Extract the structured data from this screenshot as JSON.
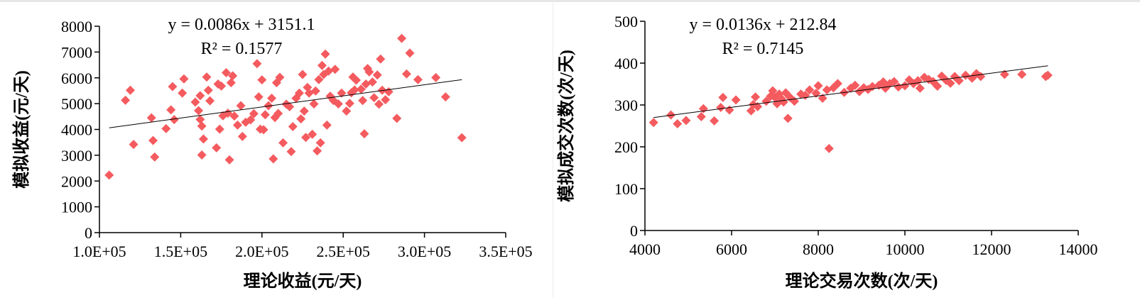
{
  "colors": {
    "marker": "#f45b5f",
    "trendline": "#000000",
    "axis": "#000000"
  },
  "chart_data": [
    {
      "type": "scatter",
      "title": "",
      "xlabel": "理论收益(元/天)",
      "ylabel": "模拟收益(元/天)",
      "xlim": [
        100000,
        350000
      ],
      "ylim": [
        0,
        8000
      ],
      "x_ticks": [
        "1.0E+05",
        "1.5E+05",
        "2.0E+05",
        "2.5E+05",
        "3.0E+05",
        "3.5E+05"
      ],
      "x_tick_values": [
        100000,
        150000,
        200000,
        250000,
        300000,
        350000
      ],
      "y_ticks": [
        "0",
        "1000",
        "2000",
        "3000",
        "4000",
        "5000",
        "6000",
        "7000",
        "8000"
      ],
      "y_tick_values": [
        0,
        1000,
        2000,
        3000,
        4000,
        5000,
        6000,
        7000,
        8000
      ],
      "grid": false,
      "legend": "none",
      "annotations": [
        "y = 0.0086x + 3151.1",
        "R² = 0.1577"
      ],
      "trendline": {
        "slope": 0.0086,
        "intercept": 3151.1,
        "x_range": [
          106000,
          323000
        ]
      },
      "series": [
        {
          "points": [
            [
              106000,
              2230
            ],
            [
              116000,
              5130
            ],
            [
              119000,
              5520
            ],
            [
              121000,
              3420
            ],
            [
              132000,
              4450
            ],
            [
              133000,
              3570
            ],
            [
              134000,
              2930
            ],
            [
              141000,
              4030
            ],
            [
              144000,
              4760
            ],
            [
              145000,
              5660
            ],
            [
              146000,
              4380
            ],
            [
              151000,
              5410
            ],
            [
              152000,
              5960
            ],
            [
              159000,
              5060
            ],
            [
              161000,
              4730
            ],
            [
              162000,
              5310
            ],
            [
              162000,
              4390
            ],
            [
              163000,
              4130
            ],
            [
              163000,
              3010
            ],
            [
              164000,
              3630
            ],
            [
              166000,
              6030
            ],
            [
              167000,
              5520
            ],
            [
              168000,
              5110
            ],
            [
              172000,
              3290
            ],
            [
              173000,
              5760
            ],
            [
              174000,
              4010
            ],
            [
              175000,
              5680
            ],
            [
              176000,
              4530
            ],
            [
              178000,
              6200
            ],
            [
              179000,
              4630
            ],
            [
              180000,
              2820
            ],
            [
              181000,
              5810
            ],
            [
              182000,
              6080
            ],
            [
              183000,
              4520
            ],
            [
              185000,
              4170
            ],
            [
              187000,
              4920
            ],
            [
              188000,
              3730
            ],
            [
              190000,
              4280
            ],
            [
              193000,
              4370
            ],
            [
              195000,
              4610
            ],
            [
              197000,
              6550
            ],
            [
              198000,
              5260
            ],
            [
              199000,
              4010
            ],
            [
              200000,
              5920
            ],
            [
              201000,
              3990
            ],
            [
              202000,
              4570
            ],
            [
              204000,
              4920
            ],
            [
              206000,
              5210
            ],
            [
              207000,
              2860
            ],
            [
              208000,
              4460
            ],
            [
              209000,
              5810
            ],
            [
              210000,
              4620
            ],
            [
              211000,
              6020
            ],
            [
              213000,
              3480
            ],
            [
              215000,
              4980
            ],
            [
              217000,
              4880
            ],
            [
              218000,
              3140
            ],
            [
              219000,
              4110
            ],
            [
              221000,
              5210
            ],
            [
              223000,
              5410
            ],
            [
              224000,
              4410
            ],
            [
              225000,
              6130
            ],
            [
              226000,
              4710
            ],
            [
              227000,
              3690
            ],
            [
              228000,
              5630
            ],
            [
              229000,
              5410
            ],
            [
              231000,
              3810
            ],
            [
              232000,
              4990
            ],
            [
              233000,
              5490
            ],
            [
              234000,
              3170
            ],
            [
              235000,
              5930
            ],
            [
              236000,
              3480
            ],
            [
              237000,
              6480
            ],
            [
              238000,
              6130
            ],
            [
              239000,
              6920
            ],
            [
              240000,
              4170
            ],
            [
              241000,
              6260
            ],
            [
              242000,
              5290
            ],
            [
              244000,
              5120
            ],
            [
              245000,
              6330
            ],
            [
              247000,
              4990
            ],
            [
              249000,
              5410
            ],
            [
              252000,
              4710
            ],
            [
              254000,
              5010
            ],
            [
              255000,
              5420
            ],
            [
              256000,
              6030
            ],
            [
              257000,
              5530
            ],
            [
              258000,
              5910
            ],
            [
              261000,
              5560
            ],
            [
              262000,
              5120
            ],
            [
              263000,
              3830
            ],
            [
              264000,
              5760
            ],
            [
              265000,
              6360
            ],
            [
              266000,
              6230
            ],
            [
              268000,
              5840
            ],
            [
              269000,
              5230
            ],
            [
              271000,
              6110
            ],
            [
              272000,
              4980
            ],
            [
              273000,
              6730
            ],
            [
              274000,
              5520
            ],
            [
              276000,
              5150
            ],
            [
              278000,
              5460
            ],
            [
              283000,
              4430
            ],
            [
              286000,
              7530
            ],
            [
              289000,
              6150
            ],
            [
              291000,
              6960
            ],
            [
              296000,
              5930
            ],
            [
              307000,
              6010
            ],
            [
              313000,
              5260
            ],
            [
              323000,
              3680
            ]
          ]
        }
      ]
    },
    {
      "type": "scatter",
      "title": "",
      "xlabel": "理论交易次数(次/天)",
      "ylabel": "模拟成交次数(次/天)",
      "xlim": [
        4000,
        14000
      ],
      "ylim": [
        0,
        500
      ],
      "x_ticks": [
        "4000",
        "6000",
        "8000",
        "10000",
        "12000",
        "14000"
      ],
      "x_tick_values": [
        4000,
        6000,
        8000,
        10000,
        12000,
        14000
      ],
      "y_ticks": [
        "0",
        "100",
        "200",
        "300",
        "400",
        "500"
      ],
      "y_tick_values": [
        0,
        100,
        200,
        300,
        400,
        500
      ],
      "grid": false,
      "legend": "none",
      "annotations": [
        "y = 0.0136x + 212.84",
        "R² = 0.7145"
      ],
      "trendline": {
        "slope": 0.0136,
        "intercept": 212.84,
        "x_range": [
          4200,
          13300
        ]
      },
      "series": [
        {
          "points": [
            [
              4200,
              258
            ],
            [
              4600,
              276
            ],
            [
              4750,
              255
            ],
            [
              4950,
              263
            ],
            [
              5300,
              272
            ],
            [
              5350,
              291
            ],
            [
              5600,
              262
            ],
            [
              5750,
              294
            ],
            [
              5800,
              318
            ],
            [
              5950,
              288
            ],
            [
              6100,
              312
            ],
            [
              6450,
              286
            ],
            [
              6500,
              301
            ],
            [
              6550,
              319
            ],
            [
              6600,
              296
            ],
            [
              6800,
              309
            ],
            [
              6900,
              321
            ],
            [
              6950,
              334
            ],
            [
              7000,
              318
            ],
            [
              7050,
              303
            ],
            [
              7100,
              326
            ],
            [
              7150,
              315
            ],
            [
              7200,
              307
            ],
            [
              7250,
              329
            ],
            [
              7300,
              268
            ],
            [
              7350,
              318
            ],
            [
              7450,
              309
            ],
            [
              7600,
              326
            ],
            [
              7700,
              323
            ],
            [
              7800,
              336
            ],
            [
              7950,
              328
            ],
            [
              8000,
              346
            ],
            [
              8100,
              316
            ],
            [
              8200,
              336
            ],
            [
              8250,
              196
            ],
            [
              8350,
              341
            ],
            [
              8450,
              351
            ],
            [
              8600,
              330
            ],
            [
              8750,
              340
            ],
            [
              8850,
              347
            ],
            [
              8950,
              332
            ],
            [
              9050,
              341
            ],
            [
              9150,
              337
            ],
            [
              9250,
              344
            ],
            [
              9400,
              347
            ],
            [
              9500,
              355
            ],
            [
              9550,
              340
            ],
            [
              9650,
              351
            ],
            [
              9750,
              356
            ],
            [
              9850,
              343
            ],
            [
              10000,
              346
            ],
            [
              10100,
              360
            ],
            [
              10200,
              351
            ],
            [
              10300,
              358
            ],
            [
              10350,
              340
            ],
            [
              10450,
              366
            ],
            [
              10550,
              361
            ],
            [
              10650,
              356
            ],
            [
              10750,
              345
            ],
            [
              10850,
              369
            ],
            [
              10950,
              359
            ],
            [
              11050,
              352
            ],
            [
              11150,
              368
            ],
            [
              11250,
              358
            ],
            [
              11400,
              371
            ],
            [
              11550,
              364
            ],
            [
              11650,
              375
            ],
            [
              11750,
              368
            ],
            [
              12300,
              373
            ],
            [
              12700,
              373
            ],
            [
              13250,
              368
            ],
            [
              13300,
              371
            ]
          ]
        }
      ]
    }
  ]
}
